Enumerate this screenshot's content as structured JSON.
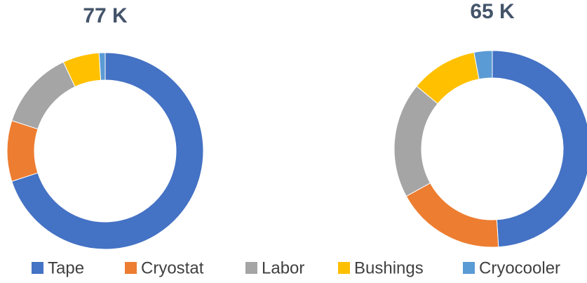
{
  "chart_data": [
    {
      "type": "donut",
      "title": "77 K",
      "categories": [
        "Tape",
        "Cryostat",
        "Labor",
        "Bushings",
        "Cryocooler"
      ],
      "values": [
        70,
        10,
        13,
        6,
        1
      ],
      "colors": [
        "#4472c4",
        "#ed7d31",
        "#a5a5a5",
        "#ffc000",
        "#5b9bd5"
      ]
    },
    {
      "type": "donut",
      "title": "65 K",
      "categories": [
        "Tape",
        "Cryostat",
        "Labor",
        "Bushings",
        "Cryocooler"
      ],
      "values": [
        49,
        18,
        19,
        11,
        3
      ],
      "colors": [
        "#4472c4",
        "#ed7d31",
        "#a5a5a5",
        "#ffc000",
        "#5b9bd5"
      ]
    }
  ]
}
